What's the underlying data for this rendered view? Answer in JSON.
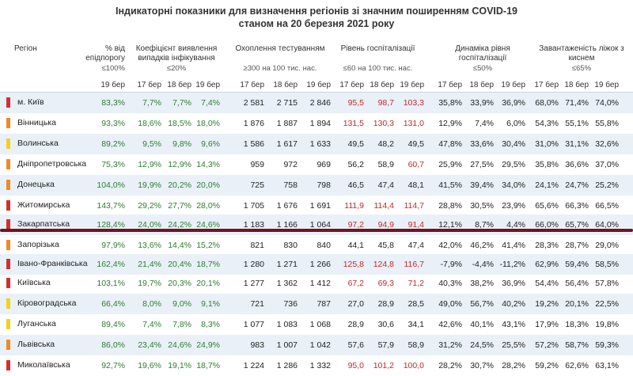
{
  "title_line1": "Індикаторні показники для визначення регіонів зі значним поширенням COVID-19",
  "title_line2": "станом на 20 березня 2021 року",
  "headers": {
    "region": "Регіон",
    "pct": "% від епідпорогу",
    "pct_sub": "≤100%",
    "coef": "Коефіцієнт виявлення випадків інфікування",
    "coef_sub": "≤20%",
    "test": "Охоплення тестуванням",
    "test_sub": "≥300 на 100 тис. нас.",
    "hosp": "Рівень госпіталізації",
    "hosp_sub": "≤60 на 100 тис. нас.",
    "dyn": "Динаміка рівня госпіталізації",
    "dyn_sub": "≤50%",
    "load": "Завантаженість ліжок з киснем",
    "load_sub": "≤65%"
  },
  "dates": {
    "d19": "19 бер",
    "d17": "17 бер",
    "d18": "18 бер"
  },
  "colors": {
    "red": "#d32f2f",
    "orange": "#f08a24",
    "yellow": "#f2d21b"
  },
  "rows": [
    {
      "name": "м. Київ",
      "marker": "red",
      "pct": "83,3%",
      "c1": "7,7%",
      "c2": "7,7%",
      "c3": "7,4%",
      "t1": "2 581",
      "t2": "2 715",
      "t3": "2 846",
      "h1": "95,5",
      "h2": "98,7",
      "h3": "103,3",
      "g1": "35,8%",
      "g2": "33,9%",
      "g3": "36,9%",
      "l1": "68,0%",
      "l2": "71,4%",
      "l3": "74,0%"
    },
    {
      "name": "Вінницька",
      "marker": "orange",
      "pct": "93,3%",
      "c1": "18,6%",
      "c2": "18,5%",
      "c3": "18,0%",
      "t1": "1 876",
      "t2": "1 887",
      "t3": "1 894",
      "h1": "131,5",
      "h2": "130,3",
      "h3": "131,0",
      "g1": "12,9%",
      "g2": "7,4%",
      "g3": "6,0%",
      "l1": "54,3%",
      "l2": "55,1%",
      "l3": "55,8%"
    },
    {
      "name": "Волинська",
      "marker": "yellow",
      "pct": "89,2%",
      "c1": "9,5%",
      "c2": "9,8%",
      "c3": "9,6%",
      "t1": "1 586",
      "t2": "1 617",
      "t3": "1 633",
      "h1": "49,5",
      "h2": "48,2",
      "h3": "49,5",
      "g1": "47,8%",
      "g2": "33,6%",
      "g3": "30,4%",
      "l1": "31,0%",
      "l2": "31,1%",
      "l3": "32,6%"
    },
    {
      "name": "Дніпропетровська",
      "marker": "orange",
      "pct": "75,3%",
      "c1": "12,9%",
      "c2": "12,9%",
      "c3": "14,3%",
      "t1": "959",
      "t2": "972",
      "t3": "969",
      "h1": "56,2",
      "h2": "58,9",
      "h3": "60,7",
      "g1": "25,9%",
      "g2": "27,5%",
      "g3": "29,5%",
      "l1": "35,8%",
      "l2": "36,6%",
      "l3": "37,0%"
    },
    {
      "name": "Донецька",
      "marker": "orange",
      "pct": "104,0%",
      "c1": "19,9%",
      "c2": "20,2%",
      "c3": "20,0%",
      "t1": "725",
      "t2": "758",
      "t3": "798",
      "h1": "46,5",
      "h2": "47,4",
      "h3": "48,1",
      "g1": "41,5%",
      "g2": "39,4%",
      "g3": "34,0%",
      "l1": "24,1%",
      "l2": "24,7%",
      "l3": "25,2%"
    },
    {
      "name": "Житомирська",
      "marker": "red",
      "pct": "143,7%",
      "c1": "29,2%",
      "c2": "27,7%",
      "c3": "28,0%",
      "t1": "1 705",
      "t2": "1 676",
      "t3": "1 691",
      "h1": "111,9",
      "h2": "114,4",
      "h3": "114,7",
      "g1": "28,8%",
      "g2": "30,5%",
      "g3": "23,9%",
      "l1": "65,6%",
      "l2": "66,3%",
      "l3": "66,5%"
    },
    {
      "name": "Закарпатська",
      "marker": "red",
      "pct": "128,4%",
      "c1": "24,0%",
      "c2": "24,2%",
      "c3": "24,6%",
      "t1": "1 183",
      "t2": "1 166",
      "t3": "1 064",
      "h1": "97,2",
      "h2": "94,9",
      "h3": "91,4",
      "g1": "12,1%",
      "g2": "8,7%",
      "g3": "4,4%",
      "l1": "66,0%",
      "l2": "65,7%",
      "l3": "64,0%"
    },
    {
      "name": "Запорізька",
      "marker": "orange",
      "pct": "97,9%",
      "c1": "13,6%",
      "c2": "14,4%",
      "c3": "15,2%",
      "t1": "821",
      "t2": "830",
      "t3": "840",
      "h1": "44,1",
      "h2": "45,8",
      "h3": "47,4",
      "g1": "42,0%",
      "g2": "46,2%",
      "g3": "41,4%",
      "l1": "28,3%",
      "l2": "28,7%",
      "l3": "29,0%"
    },
    {
      "name": "Івано-Франківська",
      "marker": "red",
      "pct": "162,4%",
      "c1": "21,4%",
      "c2": "20,4%",
      "c3": "18,7%",
      "t1": "1 280",
      "t2": "1 271",
      "t3": "1 266",
      "h1": "125,8",
      "h2": "124,8",
      "h3": "116,7",
      "g1": "-7,9%",
      "g2": "-4,4%",
      "g3": "-11,2%",
      "l1": "62,9%",
      "l2": "59,4%",
      "l3": "58,5%"
    },
    {
      "name": "Київська",
      "marker": "red",
      "pct": "103,1%",
      "c1": "19,7%",
      "c2": "20,3%",
      "c3": "20,1%",
      "t1": "1 277",
      "t2": "1 362",
      "t3": "1 412",
      "h1": "67,2",
      "h2": "69,3",
      "h3": "71,2",
      "g1": "40,3%",
      "g2": "38,2%",
      "g3": "36,9%",
      "l1": "54,4%",
      "l2": "56,4%",
      "l3": "57,8%"
    },
    {
      "name": "Кіровоградська",
      "marker": "yellow",
      "pct": "66,4%",
      "c1": "8,0%",
      "c2": "9,0%",
      "c3": "9,1%",
      "t1": "721",
      "t2": "736",
      "t3": "787",
      "h1": "27,0",
      "h2": "28,9",
      "h3": "28,5",
      "g1": "49,0%",
      "g2": "56,7%",
      "g3": "40,2%",
      "l1": "19,2%",
      "l2": "20,1%",
      "l3": "22,5%"
    },
    {
      "name": "Луганська",
      "marker": "yellow",
      "pct": "89,4%",
      "c1": "7,4%",
      "c2": "7,8%",
      "c3": "8,3%",
      "t1": "1 077",
      "t2": "1 083",
      "t3": "1 068",
      "h1": "28,9",
      "h2": "30,6",
      "h3": "34,1",
      "g1": "42,6%",
      "g2": "40,1%",
      "g3": "43,1%",
      "l1": "17,9%",
      "l2": "18,3%",
      "l3": "19,8%"
    },
    {
      "name": "Львівська",
      "marker": "orange",
      "pct": "86,0%",
      "c1": "23,4%",
      "c2": "24,6%",
      "c3": "24,9%",
      "t1": "983",
      "t2": "1 007",
      "t3": "1 042",
      "h1": "57,6",
      "h2": "57,9",
      "h3": "58,9",
      "g1": "31,2%",
      "g2": "24,5%",
      "g3": "25,5%",
      "l1": "57,2%",
      "l2": "58,7%",
      "l3": "59,3%"
    },
    {
      "name": "Миколаївська",
      "marker": "red",
      "pct": "92,7%",
      "c1": "19,6%",
      "c2": "19,1%",
      "c3": "18,7%",
      "t1": "1 224",
      "t2": "1 286",
      "t3": "1 332",
      "h1": "95,0",
      "h2": "101,2",
      "h3": "100,0",
      "g1": "28,2%",
      "g2": "30,7%",
      "g3": "28,2%",
      "l1": "59,2%",
      "l2": "62,6%",
      "l3": "63,1%"
    }
  ]
}
